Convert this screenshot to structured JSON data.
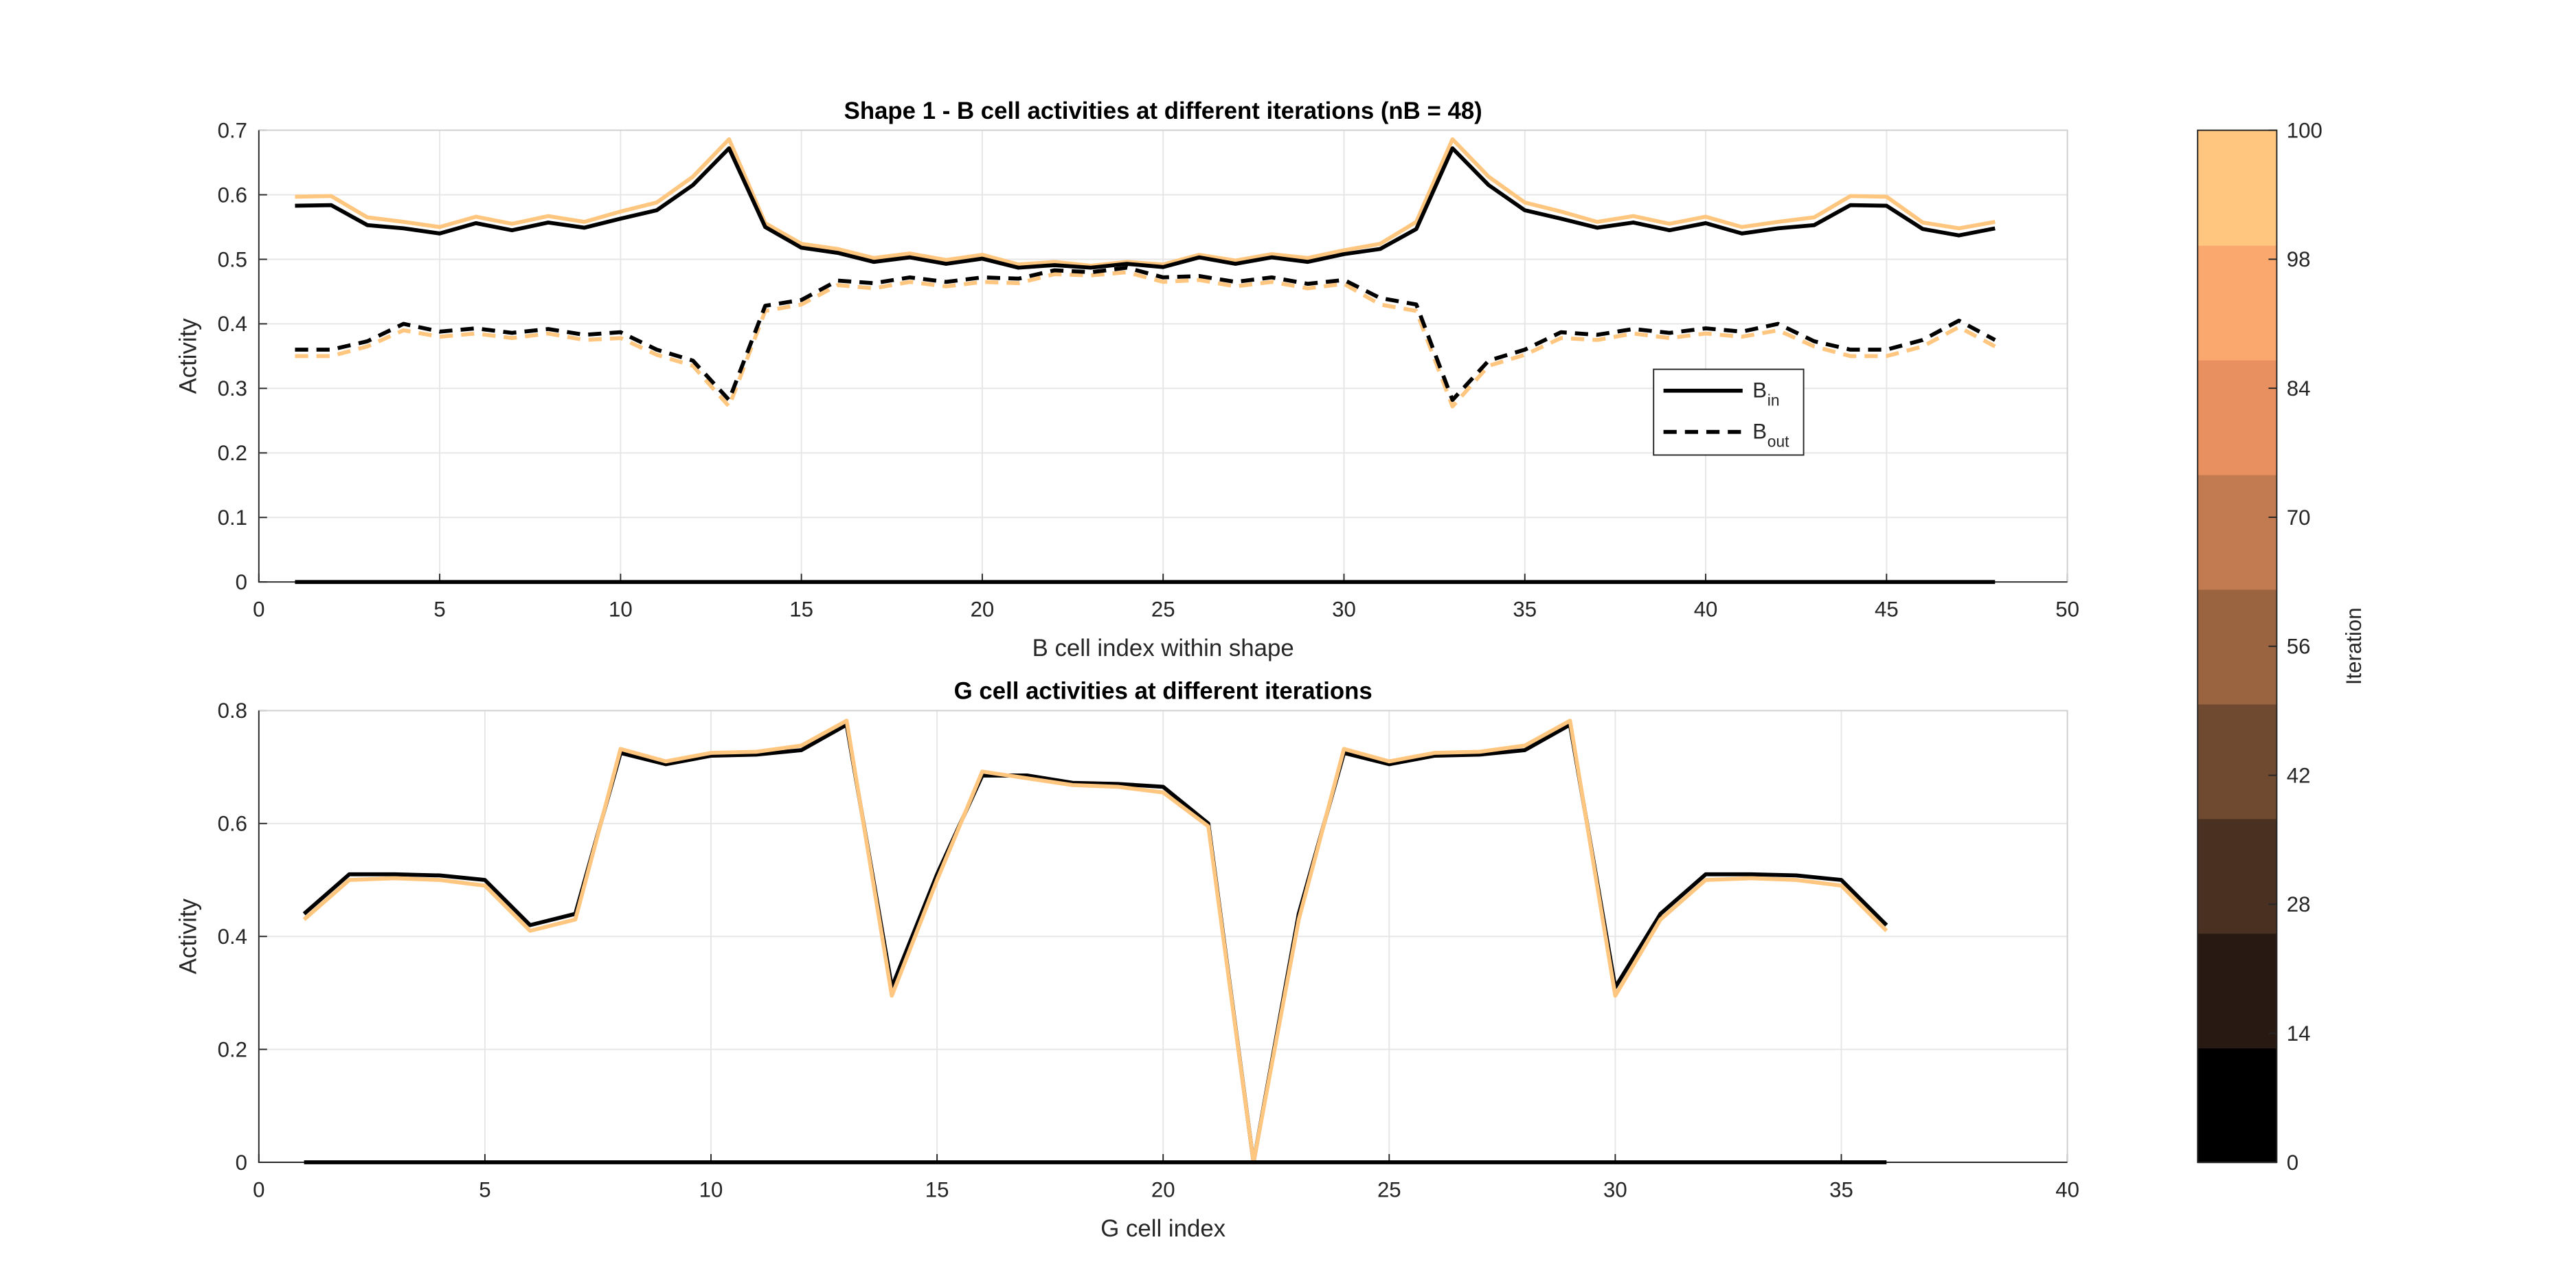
{
  "chart_data": [
    {
      "type": "line",
      "title": "Shape 1 - B cell activities at different iterations (nB = 48)",
      "xlabel": "B cell index within shape",
      "ylabel": "Activity",
      "x": [
        1,
        2,
        3,
        4,
        5,
        6,
        7,
        8,
        9,
        10,
        11,
        12,
        13,
        14,
        15,
        16,
        17,
        18,
        19,
        20,
        21,
        22,
        23,
        24,
        25,
        26,
        27,
        28,
        29,
        30,
        31,
        32,
        33,
        34,
        35,
        36,
        37,
        38,
        39,
        40,
        41,
        42,
        43,
        44,
        45,
        46,
        47,
        48
      ],
      "xlim": [
        0,
        50
      ],
      "xticks": [
        0,
        5,
        10,
        15,
        20,
        25,
        30,
        35,
        40,
        45,
        50
      ],
      "ylim": [
        0,
        0.7
      ],
      "yticks": [
        0,
        0.1,
        0.2,
        0.3,
        0.4,
        0.5,
        0.6,
        0.7
      ],
      "grid": true,
      "series": [
        {
          "color": "#ffc680",
          "dashed": false,
          "values": [
            0.597,
            0.598,
            0.565,
            0.558,
            0.55,
            0.566,
            0.555,
            0.567,
            0.558,
            0.574,
            0.588,
            0.628,
            0.686,
            0.556,
            0.524,
            0.516,
            0.502,
            0.509,
            0.499,
            0.507,
            0.492,
            0.496,
            0.49,
            0.496,
            0.492,
            0.507,
            0.498,
            0.508,
            0.502,
            0.514,
            0.524,
            0.558,
            0.686,
            0.628,
            0.588,
            0.574,
            0.558,
            0.567,
            0.555,
            0.566,
            0.55,
            0.558,
            0.565,
            0.598,
            0.597,
            0.557,
            0.548,
            0.558
          ]
        },
        {
          "color": "#000000",
          "dashed": false,
          "values": [
            0.583,
            0.584,
            0.553,
            0.548,
            0.54,
            0.556,
            0.545,
            0.557,
            0.549,
            0.563,
            0.576,
            0.615,
            0.672,
            0.55,
            0.518,
            0.51,
            0.496,
            0.503,
            0.493,
            0.501,
            0.487,
            0.491,
            0.487,
            0.493,
            0.488,
            0.503,
            0.493,
            0.503,
            0.496,
            0.508,
            0.516,
            0.547,
            0.672,
            0.615,
            0.576,
            0.563,
            0.549,
            0.557,
            0.545,
            0.556,
            0.54,
            0.548,
            0.553,
            0.584,
            0.583,
            0.547,
            0.537,
            0.548
          ]
        },
        {
          "color": "#ffc680",
          "dashed": true,
          "values": [
            0.35,
            0.35,
            0.365,
            0.39,
            0.38,
            0.385,
            0.378,
            0.385,
            0.375,
            0.378,
            0.352,
            0.335,
            0.272,
            0.42,
            0.43,
            0.46,
            0.455,
            0.465,
            0.458,
            0.465,
            0.463,
            0.477,
            0.475,
            0.48,
            0.465,
            0.468,
            0.458,
            0.465,
            0.455,
            0.462,
            0.43,
            0.42,
            0.272,
            0.335,
            0.352,
            0.378,
            0.375,
            0.385,
            0.378,
            0.385,
            0.38,
            0.39,
            0.365,
            0.35,
            0.35,
            0.365,
            0.395,
            0.365
          ]
        },
        {
          "color": "#000000",
          "dashed": true,
          "values": [
            0.36,
            0.36,
            0.373,
            0.4,
            0.388,
            0.393,
            0.386,
            0.392,
            0.383,
            0.387,
            0.36,
            0.343,
            0.282,
            0.428,
            0.437,
            0.467,
            0.463,
            0.472,
            0.465,
            0.472,
            0.47,
            0.483,
            0.48,
            0.487,
            0.472,
            0.474,
            0.465,
            0.472,
            0.462,
            0.468,
            0.44,
            0.43,
            0.282,
            0.343,
            0.36,
            0.387,
            0.383,
            0.392,
            0.386,
            0.393,
            0.388,
            0.4,
            0.373,
            0.36,
            0.36,
            0.375,
            0.405,
            0.375
          ]
        },
        {
          "color": "#000000",
          "dashed": false,
          "values": [
            0,
            0,
            0,
            0,
            0,
            0,
            0,
            0,
            0,
            0,
            0,
            0,
            0,
            0,
            0,
            0,
            0,
            0,
            0,
            0,
            0,
            0,
            0,
            0,
            0,
            0,
            0,
            0,
            0,
            0,
            0,
            0,
            0,
            0,
            0,
            0,
            0,
            0,
            0,
            0,
            0,
            0,
            0,
            0,
            0,
            0,
            0,
            0
          ]
        }
      ],
      "legend": {
        "entries": [
          {
            "label": "B",
            "subscript": "in",
            "dashed": false
          },
          {
            "label": "B",
            "subscript": "out",
            "dashed": true
          }
        ]
      }
    },
    {
      "type": "line",
      "title": "G cell activities at different iterations",
      "xlabel": "G cell index",
      "ylabel": "Activity",
      "x": [
        1,
        2,
        3,
        4,
        5,
        6,
        7,
        8,
        9,
        10,
        11,
        12,
        13,
        14,
        15,
        16,
        17,
        18,
        19,
        20,
        21,
        22,
        23,
        24,
        25,
        26,
        27,
        28,
        29,
        30,
        31,
        32,
        33,
        34,
        35,
        36
      ],
      "xlim": [
        0,
        40
      ],
      "xticks": [
        0,
        5,
        10,
        15,
        20,
        25,
        30,
        35,
        40
      ],
      "ylim": [
        0,
        0.8
      ],
      "yticks": [
        0,
        0.2,
        0.4,
        0.6,
        0.8
      ],
      "grid": true,
      "series": [
        {
          "color": "#000000",
          "dashed": false,
          "values": [
            0.44,
            0.51,
            0.51,
            0.508,
            0.5,
            0.42,
            0.44,
            0.725,
            0.705,
            0.72,
            0.722,
            0.73,
            0.775,
            0.31,
            0.51,
            0.685,
            0.685,
            0.672,
            0.67,
            0.665,
            0.6,
            0,
            0.44,
            0.725,
            0.705,
            0.72,
            0.722,
            0.73,
            0.775,
            0.31,
            0.44,
            0.51,
            0.51,
            0.508,
            0.5,
            0.42
          ]
        },
        {
          "color": "#ffc680",
          "dashed": false,
          "values": [
            0.43,
            0.5,
            0.503,
            0.5,
            0.49,
            0.41,
            0.43,
            0.732,
            0.71,
            0.725,
            0.727,
            0.738,
            0.782,
            0.295,
            0.5,
            0.692,
            0.68,
            0.668,
            0.665,
            0.655,
            0.595,
            0,
            0.43,
            0.732,
            0.71,
            0.725,
            0.727,
            0.738,
            0.782,
            0.295,
            0.43,
            0.5,
            0.503,
            0.5,
            0.49,
            0.41
          ]
        },
        {
          "color": "#000000",
          "dashed": false,
          "values": [
            0,
            0,
            0,
            0,
            0,
            0,
            0,
            0,
            0,
            0,
            0,
            0,
            0,
            0,
            0,
            0,
            0,
            0,
            0,
            0,
            0,
            0,
            0,
            0,
            0,
            0,
            0,
            0,
            0,
            0,
            0,
            0,
            0,
            0,
            0,
            0
          ]
        }
      ]
    }
  ],
  "colorbar": {
    "label": "Iteration",
    "ticks": [
      0,
      14,
      28,
      42,
      56,
      70,
      84,
      98,
      100
    ],
    "colors": [
      "#000000",
      "#281a12",
      "#4a3021",
      "#6f4a30",
      "#9a6440",
      "#c27b50",
      "#e99060",
      "#fba86e",
      "#ffc680"
    ]
  }
}
